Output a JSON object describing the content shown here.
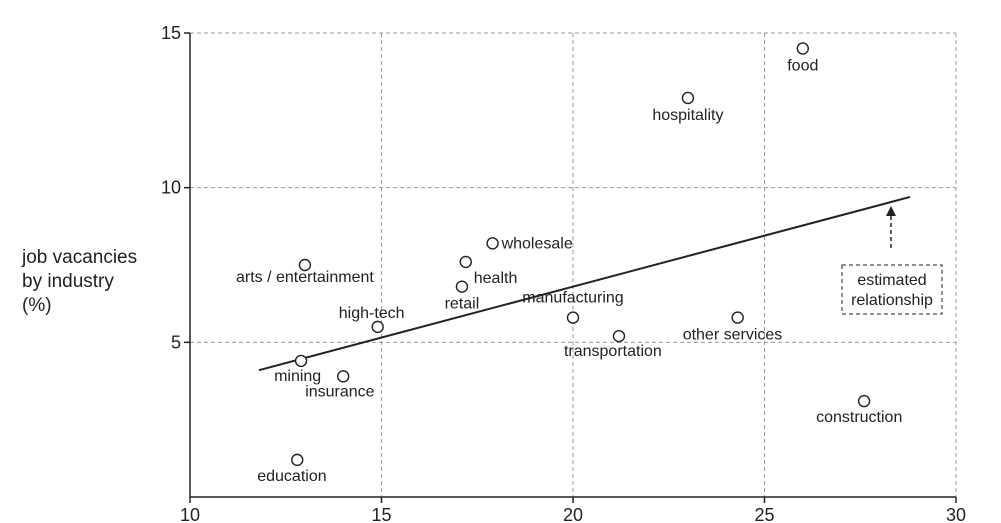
{
  "chart_data": {
    "type": "scatter",
    "title": "",
    "xlabel": "",
    "ylabel_lines": [
      "job vacancies",
      "by industry",
      "(%)"
    ],
    "xlim": [
      10,
      30
    ],
    "ylim": [
      0,
      15
    ],
    "xticks": [
      10,
      15,
      20,
      25,
      30
    ],
    "yticks": [
      5,
      10,
      15
    ],
    "grid": "dashed",
    "points": [
      {
        "label": "food",
        "x": 26.0,
        "y": 14.5
      },
      {
        "label": "hospitality",
        "x": 23.0,
        "y": 12.9
      },
      {
        "label": "wholesale",
        "x": 17.9,
        "y": 8.2
      },
      {
        "label": "health",
        "x": 17.2,
        "y": 7.6
      },
      {
        "label": "arts / entertainment",
        "x": 13.0,
        "y": 7.5
      },
      {
        "label": "retail",
        "x": 17.1,
        "y": 6.8
      },
      {
        "label": "high-tech",
        "x": 14.9,
        "y": 5.5
      },
      {
        "label": "manufacturing",
        "x": 20.0,
        "y": 5.8
      },
      {
        "label": "transportation",
        "x": 21.2,
        "y": 5.2
      },
      {
        "label": "other services",
        "x": 24.3,
        "y": 5.8
      },
      {
        "label": "mining",
        "x": 12.9,
        "y": 4.4
      },
      {
        "label": "insurance",
        "x": 14.0,
        "y": 3.9
      },
      {
        "label": "construction",
        "x": 27.6,
        "y": 3.1
      },
      {
        "label": "education",
        "x": 12.8,
        "y": 1.2
      }
    ],
    "fit_line": {
      "x": [
        11.8,
        28.8
      ],
      "y": [
        4.1,
        9.7
      ]
    },
    "annotation": {
      "lines": [
        "estimated",
        "relationship"
      ]
    },
    "colors": {
      "grid": "#9a9a9a",
      "ink": "#222222"
    }
  }
}
